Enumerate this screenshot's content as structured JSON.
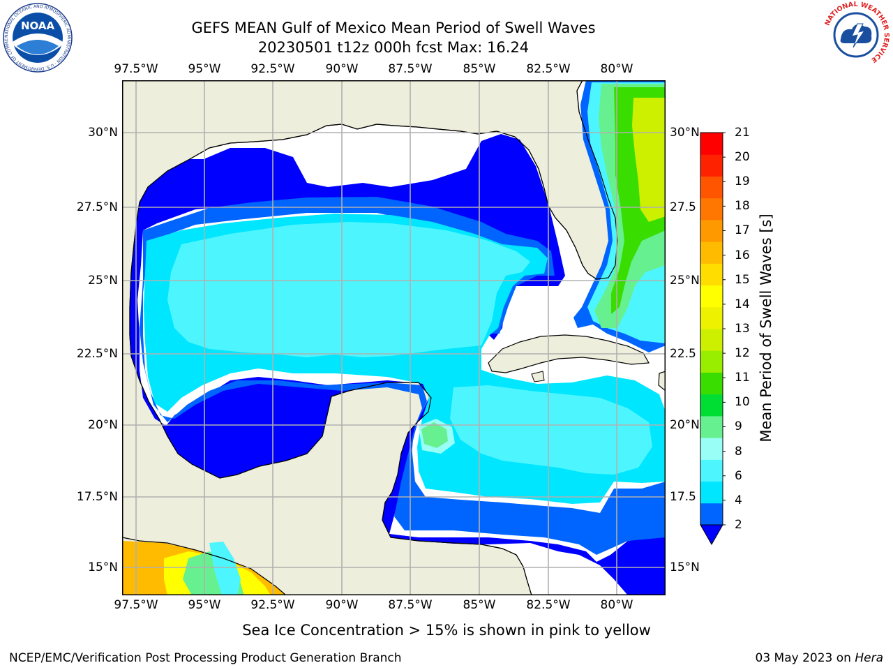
{
  "header": {
    "title_line1": "GEFS MEAN Gulf of Mexico Mean Period of Swell Waves",
    "title_line2": "20230501 t12z 000h fcst   Max: 16.24"
  },
  "map": {
    "top_lon_labels": [
      "97.5°W",
      "95°W",
      "92.5°W",
      "90°W",
      "87.5°W",
      "85°W",
      "82.5°W",
      "80°W"
    ],
    "bottom_lon_labels": [
      "97.5°W",
      "95°W",
      "92.5°W",
      "90°W",
      "87.5°W",
      "85°W",
      "82.5°W",
      "80°W"
    ],
    "left_lat_labels": [
      "30°N",
      "27.5°N",
      "25°N",
      "22.5°N",
      "20°N",
      "17.5°N",
      "15°N"
    ],
    "right_lat_labels": [
      "30°N",
      "27.5",
      "25°N",
      "22.5",
      "20°N",
      "17.5",
      "15°N"
    ],
    "lon_range": [
      -98,
      -78.3
    ],
    "lat_range": [
      14,
      31.9
    ],
    "land_color": "#eeeedc",
    "nodata_color": "#ffffff",
    "grid_color": "#b0b0b0",
    "coastline_color": "#000000"
  },
  "colorbar": {
    "title": "Mean Period of Swell Waves [s]",
    "labels": [
      "21",
      "20",
      "19",
      "18",
      "17",
      "16",
      "15",
      "14",
      "13",
      "12",
      "11",
      "10",
      "9",
      "8",
      "6",
      "4",
      "2"
    ],
    "colors_bottom_to_top": [
      "#0064ff",
      "#00e6ff",
      "#4df6ff",
      "#99fff6",
      "#66f090",
      "#00dd33",
      "#39dd00",
      "#99ee00",
      "#ccf000",
      "#eef200",
      "#ffff00",
      "#ffdd00",
      "#ffbb00",
      "#ff9900",
      "#ff7700",
      "#ff5500",
      "#ff2200",
      "#ff0000"
    ],
    "extend_color": "#0000ff"
  },
  "footer": {
    "note": "Sea Ice Concentration > 15% is shown in pink to yellow",
    "left": "NCEP/EMC/Verification Post Processing Product Generation Branch",
    "right_date": "03 May 2023 on",
    "right_host": "Hera"
  },
  "logos": {
    "noaa_text": "NOAA",
    "noaa_ring": "NATIONAL OCEANIC AND ATMOSPHERIC ADMINISTRATION · U.S. DEPARTMENT OF COMMERCE",
    "nws_ring": "NATIONAL WEATHER SERVICE"
  }
}
